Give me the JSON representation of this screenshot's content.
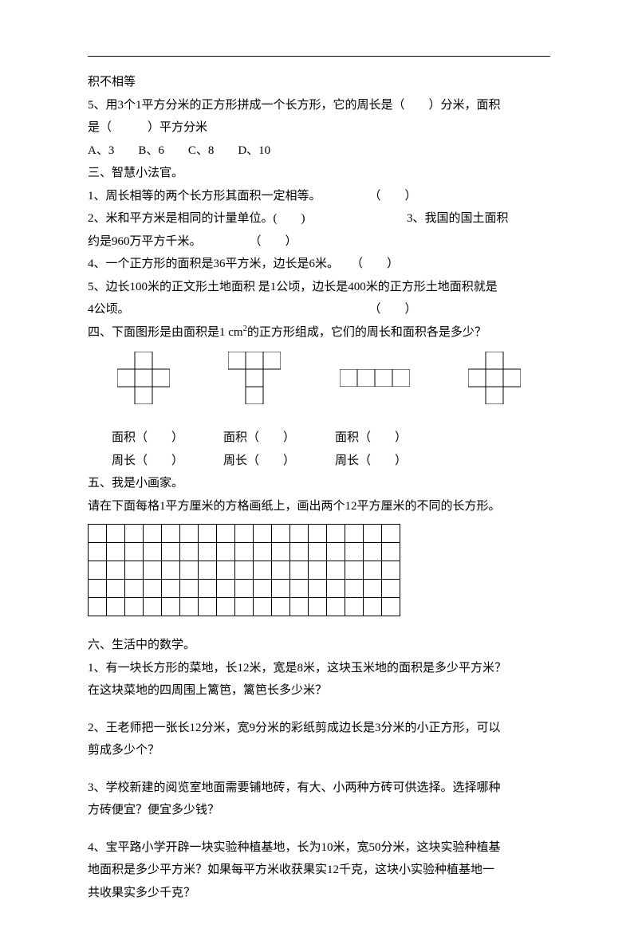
{
  "header_fragment": "积不相等",
  "q5_line1": "5、用3个1平方分米的正方形拼成一个长方形，它的周长是（　　）分米，面积",
  "q5_line2": "是（　　　）平方分米",
  "q5_options": "A、3　　B、6　　C、8　　D、10",
  "section3_title": "三、智慧小法官。",
  "s3_q1": "1、周长相等的两个长方形其面积一定相等。　　　　　（　　）",
  "s3_q2a": "2、米和平方米是相同的计量单位。(　　)",
  "s3_q2b": "3、我国的国土面积",
  "s3_q3": "约是960万平方千米。　　　　　（　　）",
  "s3_q4": "4、一个正方形的面积是36平方米，边长是6米。　　（　　）",
  "s3_q5a": "5、边长100米的正文形土地面积 是1公顷，边长是400米的正方形土地面积就是",
  "s3_q5b": "4公顷。　　　　　　　　　　　　　　　　　　　　　（　　）",
  "section4_title_a": "四、下面图形是由面积是1 cm",
  "section4_title_b": "的正方形组成，它们的周长和面积各是多少？",
  "labels": {
    "area": "面积（　　）",
    "perimeter": "周长（　　）"
  },
  "section5_title": "五、我是小画家。",
  "section5_text": "请在下面每格1平方厘米的方格画纸上，画出两个12平方厘米的不同的长方形。",
  "grid": {
    "rows": 5,
    "cols": 17
  },
  "section6_title": "六、生活中的数学。",
  "s6_q1a": "1、有一块长方形的菜地，长12米，宽是8米，这块玉米地的面积是多少平方米？",
  "s6_q1b": "在这块菜地的四周围上篱笆，篱笆长多少米？",
  "s6_q2a": "2、王老师把一张长12分米，宽9分米的彩纸剪成边长是3分米的小正方形，可以",
  "s6_q2b": "剪成多少个？",
  "s6_q3a": "3、学校新建的阅览室地面需要铺地砖，有大、小两种方砖可供选择。选择哪种",
  "s6_q3b": "方砖便宜？便宜多少钱？",
  "s6_q4a": "4、宝平路小学开辟一块实验种植基地，长为10米，宽50分米，这块实验种植基",
  "s6_q4b": "地面积是多少平方米？如果每平方米收获果实12千克，这块小实验种植基地一",
  "s6_q4c": "共收果实多少千克？",
  "shapes": {
    "unit": 22,
    "stroke": "#000000",
    "fill": "#ffffff"
  }
}
